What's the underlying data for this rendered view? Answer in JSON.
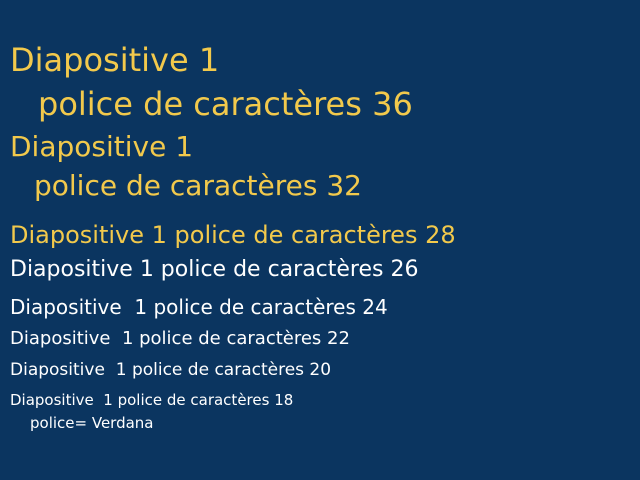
{
  "slide": {
    "background_color": "#0b3560",
    "accent_color": "#f2c94c",
    "text_color": "#ffffff",
    "lines": [
      {
        "text": "Diapositive 1"
      },
      {
        "text": "police de caractères 36"
      },
      {
        "text": "Diapositive 1"
      },
      {
        "text": "police de caractères 32"
      },
      {
        "text": "Diapositive 1 police de caractères 28"
      },
      {
        "text": "Diapositive 1 police de caractères 26"
      },
      {
        "text": "Diapositive  1 police de caractères 24"
      },
      {
        "text": "Diapositive  1 police de caractères 22"
      },
      {
        "text": "Diapositive  1 police de caractères 20"
      },
      {
        "text": "Diapositive  1 police de caractères 18"
      },
      {
        "text": "police= Verdana"
      }
    ]
  }
}
